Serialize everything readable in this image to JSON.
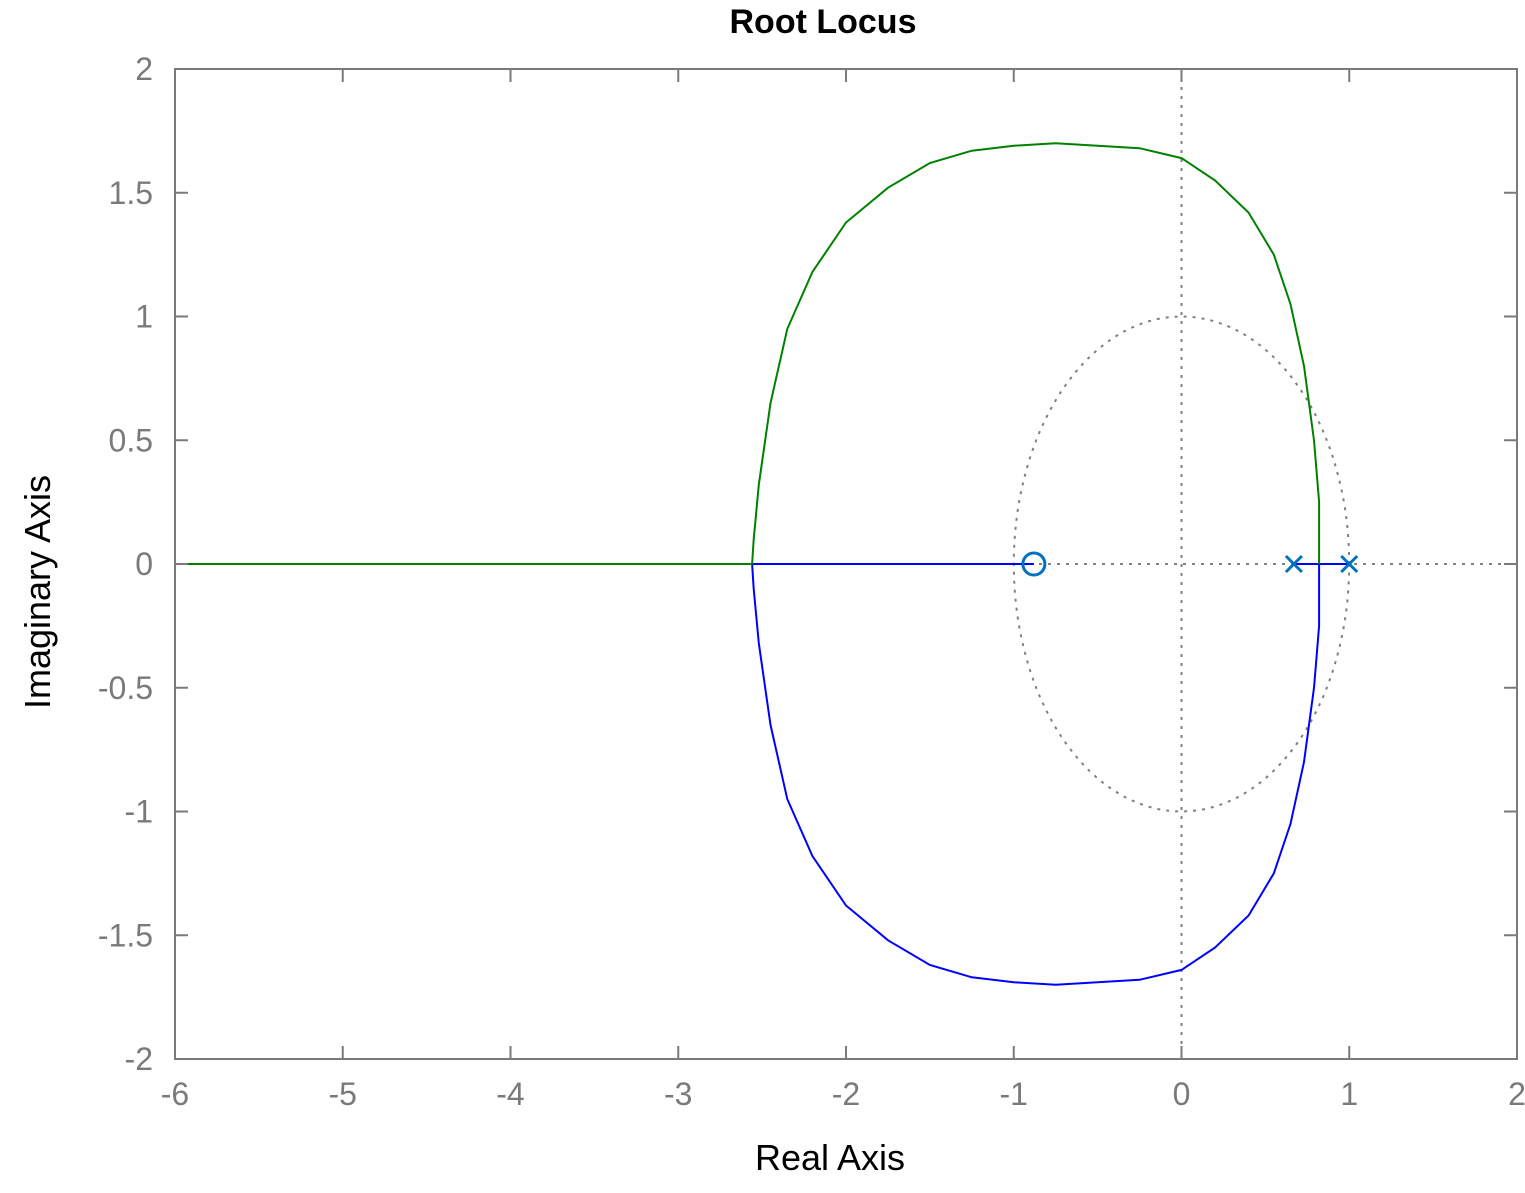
{
  "chart_data": {
    "type": "line",
    "title": "Root Locus",
    "xlabel": "Real Axis",
    "ylabel": "Imaginary Axis",
    "xlim": [
      -6,
      2
    ],
    "ylim": [
      -2,
      2
    ],
    "xticks": [
      -6,
      -5,
      -4,
      -3,
      -2,
      -1,
      0,
      1,
      2
    ],
    "yticks": [
      -2,
      -1.5,
      -1,
      -0.5,
      0,
      0.5,
      1,
      1.5,
      2
    ],
    "xtick_labels": [
      "-6",
      "-5",
      "-4",
      "-3",
      "-2",
      "-1",
      "0",
      "1",
      "2"
    ],
    "ytick_labels": [
      "-2",
      "-1.5",
      "-1",
      "-0.5",
      "0",
      "0.5",
      "1",
      "1.5",
      "2"
    ],
    "grid": false,
    "reference_lines": {
      "unit_circle": true,
      "real_axis_dotted": true,
      "imag_axis_dotted": true,
      "color": "#808080"
    },
    "zeros": [
      [
        -0.88,
        0
      ]
    ],
    "poles": [
      [
        0.67,
        0
      ],
      [
        1.0,
        0
      ]
    ],
    "marker_color": "#0072bd",
    "series": [
      {
        "color": "#0000ff",
        "points": [
          [
            1.0,
            0
          ],
          [
            0.67,
            0
          ]
        ]
      },
      {
        "color": "#0000ff",
        "points": [
          [
            0.82,
            0
          ],
          [
            0.82,
            -0.25
          ],
          [
            0.79,
            -0.5
          ],
          [
            0.73,
            -0.8
          ],
          [
            0.65,
            -1.05
          ],
          [
            0.55,
            -1.25
          ],
          [
            0.4,
            -1.42
          ],
          [
            0.2,
            -1.55
          ],
          [
            0.0,
            -1.64
          ],
          [
            -0.25,
            -1.68
          ],
          [
            -0.5,
            -1.69
          ],
          [
            -0.75,
            -1.7
          ],
          [
            -1.0,
            -1.69
          ],
          [
            -1.25,
            -1.67
          ],
          [
            -1.5,
            -1.62
          ],
          [
            -1.75,
            -1.52
          ],
          [
            -2.0,
            -1.38
          ],
          [
            -2.2,
            -1.18
          ],
          [
            -2.35,
            -0.95
          ],
          [
            -2.45,
            -0.65
          ],
          [
            -2.52,
            -0.32
          ],
          [
            -2.55,
            -0.1
          ],
          [
            -2.56,
            0
          ]
        ]
      },
      {
        "color": "#0000ff",
        "points": [
          [
            -2.56,
            0
          ],
          [
            -0.88,
            0
          ]
        ]
      },
      {
        "color": "#008000",
        "points": [
          [
            0.82,
            0
          ],
          [
            0.82,
            0.25
          ],
          [
            0.79,
            0.5
          ],
          [
            0.73,
            0.8
          ],
          [
            0.65,
            1.05
          ],
          [
            0.55,
            1.25
          ],
          [
            0.4,
            1.42
          ],
          [
            0.2,
            1.55
          ],
          [
            0.0,
            1.64
          ],
          [
            -0.25,
            1.68
          ],
          [
            -0.5,
            1.69
          ],
          [
            -0.75,
            1.7
          ],
          [
            -1.0,
            1.69
          ],
          [
            -1.25,
            1.67
          ],
          [
            -1.5,
            1.62
          ],
          [
            -1.75,
            1.52
          ],
          [
            -2.0,
            1.38
          ],
          [
            -2.2,
            1.18
          ],
          [
            -2.35,
            0.95
          ],
          [
            -2.45,
            0.65
          ],
          [
            -2.52,
            0.32
          ],
          [
            -2.55,
            0.1
          ],
          [
            -2.56,
            0
          ]
        ]
      },
      {
        "color": "#008000",
        "points": [
          [
            -2.56,
            0
          ],
          [
            -6,
            0
          ]
        ]
      }
    ]
  }
}
